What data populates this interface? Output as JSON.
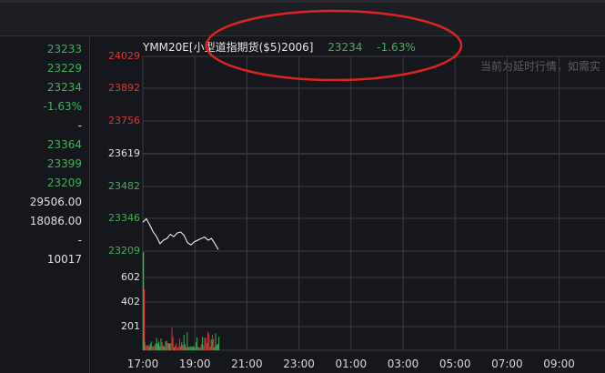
{
  "side_panel": {
    "values": [
      {
        "text": "23233",
        "color": "green"
      },
      {
        "text": "23229",
        "color": "green"
      },
      {
        "text": "23234",
        "color": "green"
      },
      {
        "text": "-1.63%",
        "color": "green"
      },
      {
        "text": "-",
        "color": "white"
      },
      {
        "text": "23364",
        "color": "green"
      },
      {
        "text": "23399",
        "color": "green"
      },
      {
        "text": "23209",
        "color": "green"
      },
      {
        "text": "29506.00",
        "color": "white"
      },
      {
        "text": "18086.00",
        "color": "white"
      },
      {
        "text": "-",
        "color": "white"
      },
      {
        "text": "10017",
        "color": "white"
      }
    ]
  },
  "header": {
    "symbol": "YMM20E[小型道指期货($5)2006]",
    "last_price": "23234",
    "change_pct": "-1.63%"
  },
  "notice": "当前为延时行情，如需实",
  "price_axis": [
    {
      "text": "24029",
      "color": "red"
    },
    {
      "text": "23892",
      "color": "red"
    },
    {
      "text": "23756",
      "color": "red"
    },
    {
      "text": "23619",
      "color": "white"
    },
    {
      "text": "23482",
      "color": "green"
    },
    {
      "text": "23346",
      "color": "green"
    },
    {
      "text": "23209",
      "color": "green"
    }
  ],
  "volume_axis": [
    "602",
    "402",
    "201"
  ],
  "time_axis": [
    "17:00",
    "19:00",
    "21:00",
    "23:00",
    "01:00",
    "03:00",
    "05:00",
    "07:00",
    "09:00"
  ],
  "colors": {
    "up": "#d23a3a",
    "down": "#3fb05a",
    "line": "#ffffff",
    "grid": "#3a3b42",
    "annotation": "#d9241f"
  },
  "price_series": [
    23330,
    23345,
    23320,
    23290,
    23270,
    23240,
    23255,
    23262,
    23280,
    23270,
    23285,
    23290,
    23275,
    23245,
    23235,
    23248,
    23255,
    23262,
    23268,
    23255,
    23262,
    23240,
    23215
  ]
}
